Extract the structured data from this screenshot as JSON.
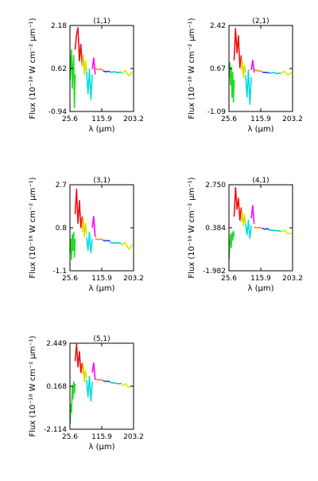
{
  "figure": {
    "xlabel": "λ (μm)",
    "ylabel": "Flux (10⁻¹⁸ W cm⁻² μm⁻¹)"
  },
  "chart_data": [
    {
      "type": "line",
      "title": "(1,1)",
      "xlim": [
        25.6,
        203.2
      ],
      "ylim": [
        -0.94,
        2.18
      ],
      "xticks": [
        "25.6",
        "115.9",
        "203.2"
      ],
      "yticks": [
        "2.18",
        "0.62",
        "-0.94"
      ],
      "grid": false,
      "series": [
        {
          "color": "#22dd22",
          "x": [
            26,
            28,
            30,
            32,
            34,
            36,
            38,
            40
          ],
          "y": [
            0.2,
            0.9,
            1.3,
            -0.1,
            0.6,
            1.1,
            -0.8,
            0.4
          ]
        },
        {
          "color": "#ee1111",
          "x": [
            40,
            44,
            48,
            52,
            56,
            60
          ],
          "y": [
            1.3,
            1.85,
            2.1,
            0.9,
            1.5,
            0.7
          ]
        },
        {
          "color": "#dddd00",
          "x": [
            60,
            63,
            66,
            69,
            72
          ],
          "y": [
            0.7,
            1.1,
            0.4,
            0.9,
            0.5
          ]
        },
        {
          "color": "#00dddd",
          "x": [
            72,
            76,
            80,
            84,
            88
          ],
          "y": [
            0.5,
            -0.3,
            0.6,
            -0.5,
            0.4
          ]
        },
        {
          "color": "#ff00ff",
          "x": [
            88,
            92,
            96
          ],
          "y": [
            0.6,
            1.0,
            0.4
          ]
        },
        {
          "color": "#ff8800",
          "x": [
            96,
            104,
            112,
            118
          ],
          "y": [
            0.62,
            0.58,
            0.6,
            0.56
          ]
        },
        {
          "color": "#3333ff",
          "x": [
            118,
            126,
            132,
            138
          ],
          "y": [
            0.54,
            0.5,
            0.52,
            0.5
          ]
        },
        {
          "color": "#00cccc",
          "x": [
            138,
            150,
            160,
            170
          ],
          "y": [
            0.48,
            0.5,
            0.47,
            0.49
          ]
        },
        {
          "color": "#ccee00",
          "x": [
            170,
            180,
            190,
            200
          ],
          "y": [
            0.42,
            0.55,
            0.35,
            0.5
          ]
        }
      ]
    },
    {
      "type": "line",
      "title": "(2,1)",
      "xlim": [
        25.6,
        203.2
      ],
      "ylim": [
        -1.09,
        2.42
      ],
      "xticks": [
        "25.6",
        "115.9",
        "203.2"
      ],
      "yticks": [
        "2.42",
        "0.67",
        "-1.09"
      ],
      "grid": false,
      "series": [
        {
          "color": "#22dd22",
          "x": [
            26,
            28,
            30,
            32,
            34,
            36,
            38,
            40
          ],
          "y": [
            0.3,
            0.9,
            0.0,
            0.7,
            -0.5,
            0.5,
            -0.7,
            0.2
          ]
        },
        {
          "color": "#ee1111",
          "x": [
            40,
            44,
            48,
            52,
            56,
            60
          ],
          "y": [
            1.0,
            2.3,
            1.3,
            2.0,
            0.7,
            1.2
          ]
        },
        {
          "color": "#dddd00",
          "x": [
            60,
            63,
            66,
            69,
            72
          ],
          "y": [
            0.6,
            1.0,
            0.3,
            0.8,
            0.5
          ]
        },
        {
          "color": "#00dddd",
          "x": [
            72,
            76,
            80,
            84,
            88
          ],
          "y": [
            0.4,
            -0.5,
            0.6,
            -0.8,
            0.3
          ]
        },
        {
          "color": "#ff00ff",
          "x": [
            88,
            92,
            96
          ],
          "y": [
            0.6,
            1.0,
            0.5
          ]
        },
        {
          "color": "#ff8800",
          "x": [
            96,
            104,
            112,
            118
          ],
          "y": [
            0.62,
            0.58,
            0.55,
            0.57
          ]
        },
        {
          "color": "#3333ff",
          "x": [
            118,
            126,
            132,
            138
          ],
          "y": [
            0.52,
            0.5,
            0.51,
            0.48
          ]
        },
        {
          "color": "#00cccc",
          "x": [
            138,
            150,
            160,
            170
          ],
          "y": [
            0.47,
            0.5,
            0.46,
            0.48
          ]
        },
        {
          "color": "#ccee00",
          "x": [
            170,
            180,
            190,
            200
          ],
          "y": [
            0.45,
            0.55,
            0.4,
            0.5
          ]
        }
      ]
    },
    {
      "type": "line",
      "title": "(3,1)",
      "xlim": [
        25.6,
        203.2
      ],
      "ylim": [
        -1.1,
        2.7
      ],
      "xticks": [
        "25.6",
        "115.9",
        "203.2"
      ],
      "yticks": [
        "2.7",
        "0.8",
        "-1.1"
      ],
      "grid": false,
      "series": [
        {
          "color": "#22dd22",
          "x": [
            26,
            28,
            30,
            32,
            34,
            36,
            38,
            40
          ],
          "y": [
            -0.3,
            0.3,
            -0.6,
            0.5,
            -0.2,
            0.6,
            -0.5,
            0.3
          ]
        },
        {
          "color": "#ee1111",
          "x": [
            40,
            44,
            48,
            52,
            56,
            60
          ],
          "y": [
            1.4,
            2.5,
            1.0,
            2.0,
            0.8,
            1.3
          ]
        },
        {
          "color": "#dddd00",
          "x": [
            60,
            63,
            66,
            69,
            72
          ],
          "y": [
            0.6,
            1.2,
            0.4,
            1.0,
            0.5
          ]
        },
        {
          "color": "#00dddd",
          "x": [
            72,
            76,
            80,
            84,
            88
          ],
          "y": [
            0.4,
            -0.2,
            0.6,
            -0.3,
            0.3
          ]
        },
        {
          "color": "#ff00ff",
          "x": [
            88,
            92,
            96
          ],
          "y": [
            0.8,
            1.3,
            0.4
          ]
        },
        {
          "color": "#ff8800",
          "x": [
            96,
            104,
            112,
            118
          ],
          "y": [
            0.32,
            0.28,
            0.3,
            0.26
          ]
        },
        {
          "color": "#3333ff",
          "x": [
            118,
            126,
            132,
            138
          ],
          "y": [
            0.25,
            0.22,
            0.24,
            0.2
          ]
        },
        {
          "color": "#00cccc",
          "x": [
            138,
            150,
            160,
            170
          ],
          "y": [
            0.15,
            0.12,
            0.14,
            0.1
          ]
        },
        {
          "color": "#ccee00",
          "x": [
            170,
            180,
            190,
            200
          ],
          "y": [
            0.0,
            0.15,
            -0.15,
            0.05
          ]
        }
      ]
    },
    {
      "type": "line",
      "title": "(4,1)",
      "xlim": [
        25.6,
        203.2
      ],
      "ylim": [
        -1.982,
        2.75
      ],
      "xticks": [
        "25.6",
        "115.9",
        "203.2"
      ],
      "yticks": [
        "2.750",
        "0.384",
        "-1.982"
      ],
      "grid": false,
      "series": [
        {
          "color": "#22dd22",
          "x": [
            26,
            28,
            30,
            32,
            34,
            36,
            38,
            40
          ],
          "y": [
            -1.3,
            -0.5,
            0.0,
            -0.7,
            0.1,
            -0.3,
            0.2,
            -0.1
          ]
        },
        {
          "color": "#ee1111",
          "x": [
            40,
            44,
            48,
            52,
            56,
            60
          ],
          "y": [
            1.0,
            2.6,
            1.4,
            2.0,
            0.8,
            1.5
          ]
        },
        {
          "color": "#dddd00",
          "x": [
            60,
            63,
            66,
            69,
            72
          ],
          "y": [
            0.7,
            1.3,
            0.5,
            1.1,
            0.6
          ]
        },
        {
          "color": "#00dddd",
          "x": [
            72,
            76,
            80,
            84,
            88
          ],
          "y": [
            0.6,
            0.0,
            0.8,
            -0.2,
            0.5
          ]
        },
        {
          "color": "#ff00ff",
          "x": [
            88,
            92,
            96
          ],
          "y": [
            0.9,
            1.6,
            0.6
          ]
        },
        {
          "color": "#ff8800",
          "x": [
            96,
            104,
            112,
            118
          ],
          "y": [
            0.42,
            0.38,
            0.4,
            0.35
          ]
        },
        {
          "color": "#3333ff",
          "x": [
            118,
            126,
            132,
            138
          ],
          "y": [
            0.36,
            0.3,
            0.34,
            0.28
          ]
        },
        {
          "color": "#00cccc",
          "x": [
            138,
            150,
            160,
            170
          ],
          "y": [
            0.26,
            0.24,
            0.22,
            0.2
          ]
        },
        {
          "color": "#ccee00",
          "x": [
            170,
            180,
            190,
            200
          ],
          "y": [
            0.15,
            0.25,
            0.05,
            0.1
          ]
        }
      ]
    },
    {
      "type": "line",
      "title": "(5,1)",
      "xlim": [
        25.6,
        203.2
      ],
      "ylim": [
        -2.114,
        2.449
      ],
      "xticks": [
        "25.6",
        "115.9",
        "203.2"
      ],
      "yticks": [
        "2.449",
        "0.168",
        "-2.114"
      ],
      "grid": false,
      "series": [
        {
          "color": "#22dd22",
          "x": [
            26,
            28,
            30,
            32,
            34,
            36,
            38,
            40
          ],
          "y": [
            -1.8,
            -0.8,
            -1.2,
            0.2,
            -0.5,
            0.4,
            -0.2,
            0.3
          ]
        },
        {
          "color": "#ee1111",
          "x": [
            40,
            44,
            48,
            52,
            56,
            60
          ],
          "y": [
            1.5,
            2.4,
            1.2,
            2.0,
            0.9,
            1.4
          ]
        },
        {
          "color": "#dddd00",
          "x": [
            60,
            63,
            66,
            69,
            72
          ],
          "y": [
            0.8,
            1.3,
            0.4,
            1.0,
            0.6
          ]
        },
        {
          "color": "#00dddd",
          "x": [
            72,
            76,
            80,
            84,
            88
          ],
          "y": [
            0.5,
            -0.4,
            0.7,
            -0.6,
            0.4
          ]
        },
        {
          "color": "#ff00ff",
          "x": [
            88,
            92,
            96
          ],
          "y": [
            0.9,
            1.4,
            0.5
          ]
        },
        {
          "color": "#ff8800",
          "x": [
            96,
            104,
            112,
            118
          ],
          "y": [
            0.55,
            0.5,
            0.52,
            0.48
          ]
        },
        {
          "color": "#3333ff",
          "x": [
            118,
            126,
            132,
            138
          ],
          "y": [
            0.46,
            0.42,
            0.44,
            0.4
          ]
        },
        {
          "color": "#00cccc",
          "x": [
            138,
            150,
            160,
            170
          ],
          "y": [
            0.36,
            0.34,
            0.3,
            0.32
          ]
        },
        {
          "color": "#ccee00",
          "x": [
            170,
            180,
            190,
            200
          ],
          "y": [
            0.18,
            0.3,
            0.1,
            0.2
          ]
        }
      ]
    }
  ]
}
